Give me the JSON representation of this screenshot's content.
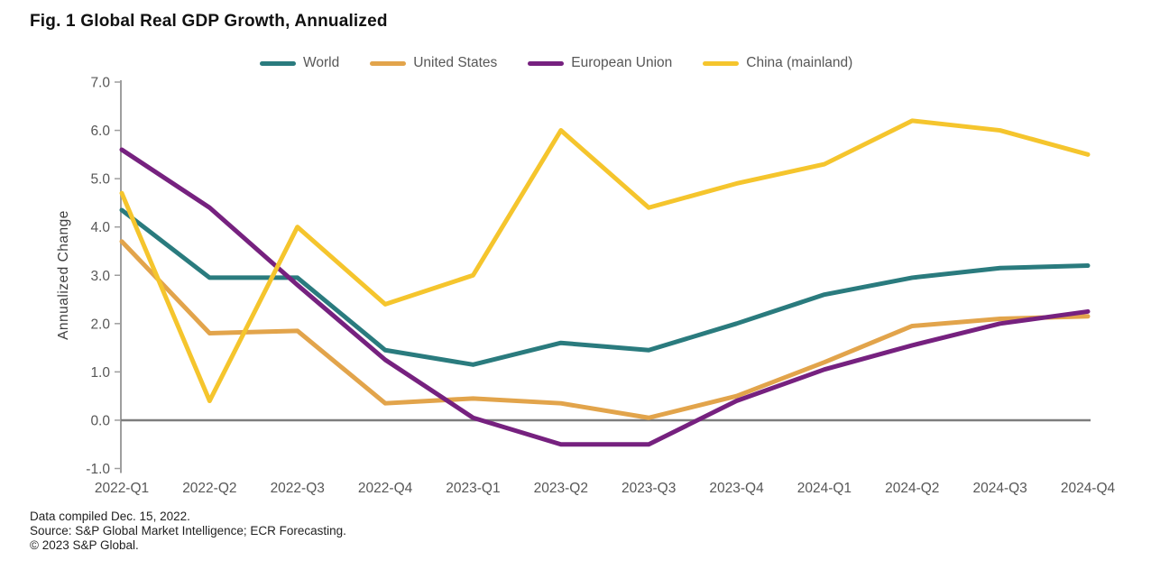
{
  "title": "Fig. 1 Global Real GDP Growth, Annualized",
  "ylabel": "Annualized Change",
  "footer": {
    "line1": "Data compiled Dec. 15, 2022.",
    "line2": "Source: S&P Global Market Intelligence; ECR Forecasting.",
    "line3": "© 2023 S&P Global."
  },
  "colors": {
    "world": "#2a7b7e",
    "united_states": "#e2a44b",
    "european_union": "#76217f",
    "china_mainland": "#f5c52d",
    "zero_line": "#7d7d7d",
    "axis": "#9e9e9e",
    "tick_text": "#575757"
  },
  "chart_data": {
    "type": "line",
    "title": "Fig. 1 Global Real GDP Growth, Annualized",
    "xlabel": "",
    "ylabel": "Annualized Change",
    "ylim": [
      -1.0,
      7.0
    ],
    "yticks": [
      7.0,
      6.0,
      5.0,
      4.0,
      3.0,
      2.0,
      1.0,
      0.0,
      -1.0
    ],
    "grid": false,
    "zero_line": true,
    "legend_position": "top",
    "categories": [
      "2022-Q1",
      "2022-Q2",
      "2022-Q3",
      "2022-Q4",
      "2023-Q1",
      "2023-Q2",
      "2023-Q3",
      "2023-Q4",
      "2024-Q1",
      "2024-Q2",
      "2024-Q3",
      "2024-Q4"
    ],
    "series": [
      {
        "name": "World",
        "color": "#2a7b7e",
        "values": [
          4.35,
          2.95,
          2.95,
          1.45,
          1.15,
          1.6,
          1.45,
          2.0,
          2.6,
          2.95,
          3.15,
          3.2
        ]
      },
      {
        "name": "United States",
        "color": "#e2a44b",
        "values": [
          3.7,
          1.8,
          1.85,
          0.35,
          0.45,
          0.35,
          0.05,
          0.5,
          1.2,
          1.95,
          2.1,
          2.15
        ]
      },
      {
        "name": "European Union",
        "color": "#76217f",
        "values": [
          5.6,
          4.4,
          2.8,
          1.25,
          0.05,
          -0.5,
          -0.5,
          0.4,
          1.05,
          1.55,
          2.0,
          2.25
        ]
      },
      {
        "name": "China (mainland)",
        "color": "#f5c52d",
        "values": [
          4.7,
          0.4,
          4.0,
          2.4,
          3.0,
          6.0,
          4.4,
          4.9,
          5.3,
          6.2,
          6.0,
          5.5
        ]
      }
    ]
  }
}
